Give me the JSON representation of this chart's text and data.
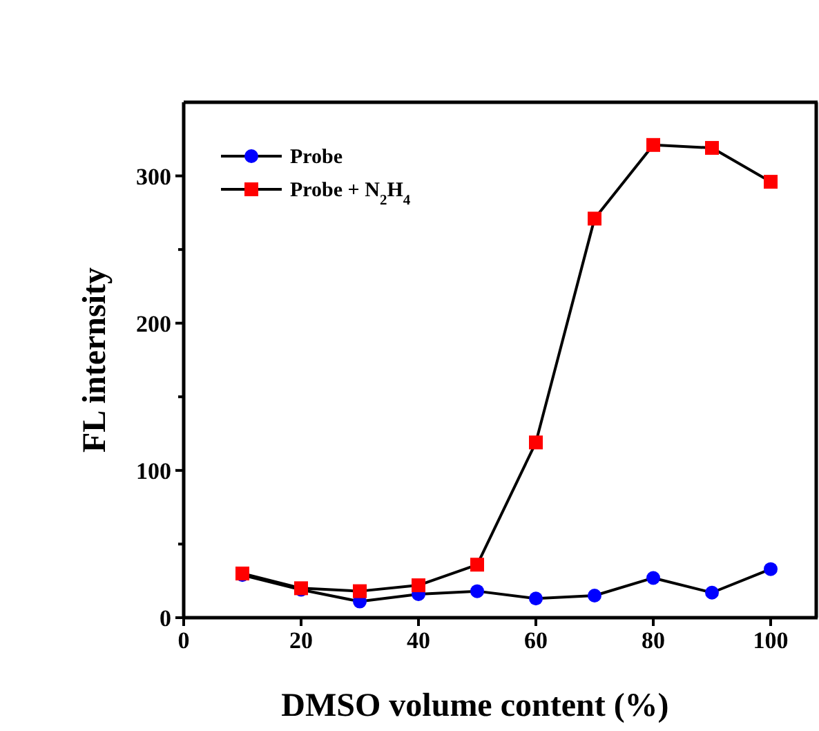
{
  "chart_data": {
    "type": "line",
    "xlabel": "DMSO volume content (%)",
    "ylabel": "FL internsity",
    "x": [
      10,
      20,
      30,
      40,
      50,
      60,
      70,
      80,
      90,
      100
    ],
    "xlim": [
      0,
      108
    ],
    "xticks": [
      0,
      20,
      40,
      60,
      80,
      100
    ],
    "ylim": [
      0,
      350
    ],
    "yticks": [
      0,
      {
        "value": 50,
        "label": null
      },
      100,
      {
        "value": 150,
        "label": null
      },
      200,
      {
        "value": 250,
        "label": null
      },
      300
    ],
    "series": [
      {
        "name": "Probe",
        "color": "#0000ff",
        "marker": "circle",
        "values": [
          29,
          19,
          11,
          16,
          18,
          13,
          15,
          27,
          17,
          33
        ]
      },
      {
        "name": "Probe + N$_{2}$H$_{4}$",
        "color": "#ff0000",
        "marker": "square",
        "values": [
          30,
          20,
          18,
          22,
          36,
          119,
          271,
          321,
          319,
          296
        ]
      }
    ],
    "legend": "top left",
    "grid": false,
    "line_style": "solid"
  }
}
